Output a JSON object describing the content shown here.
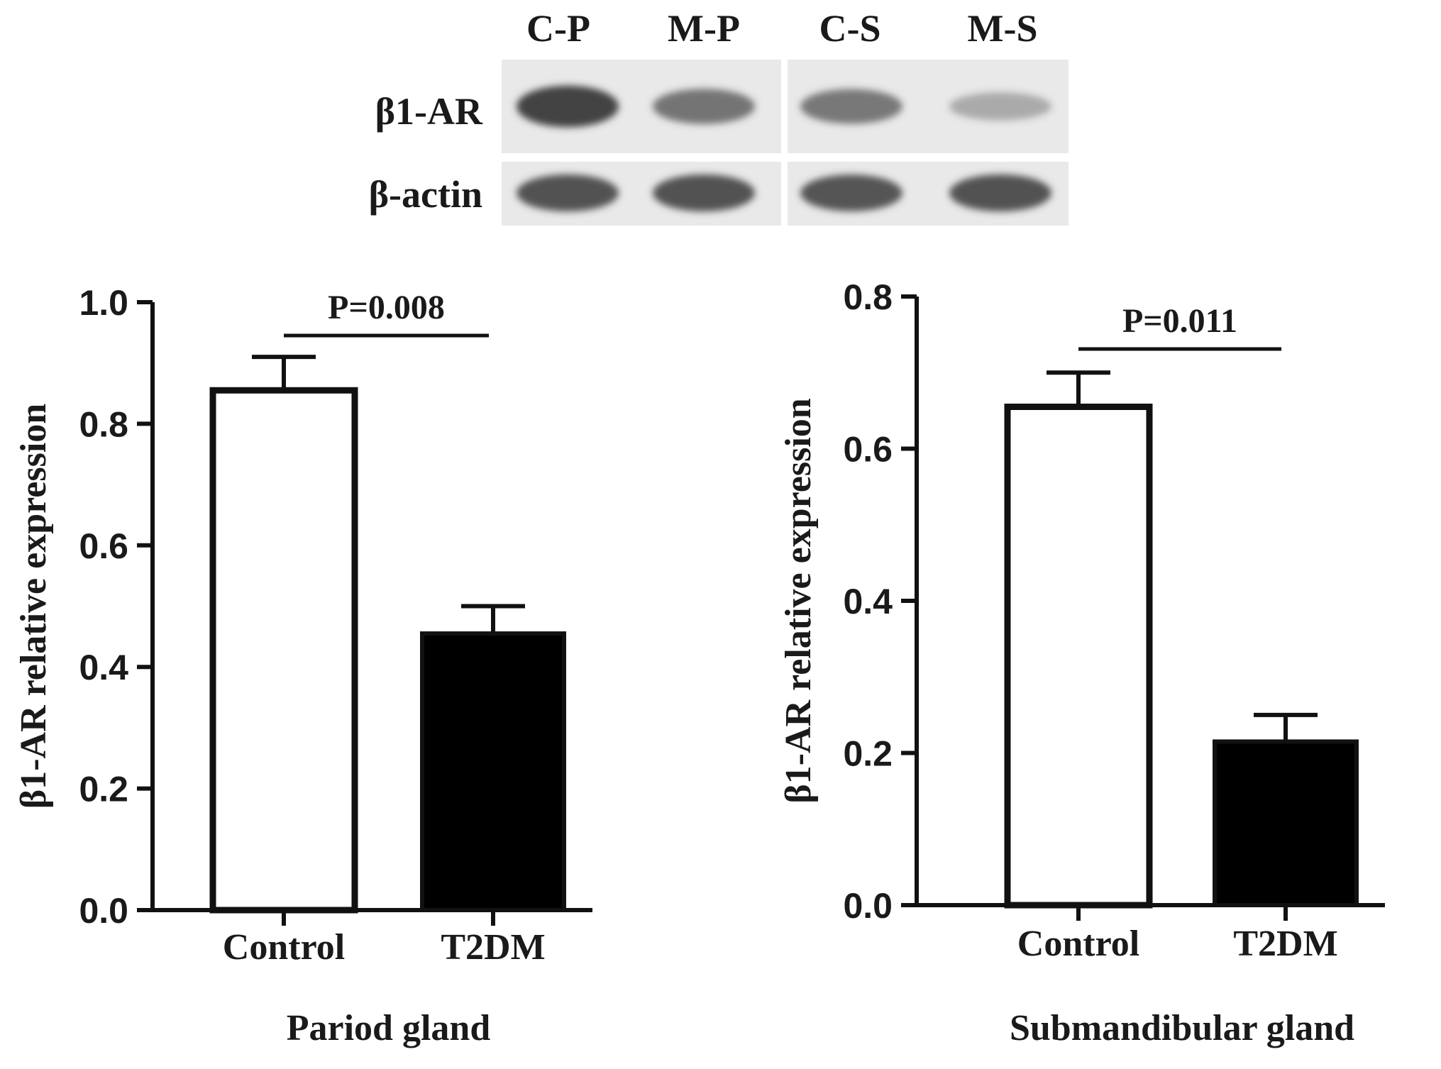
{
  "blot": {
    "lanes": [
      "C-P",
      "M-P",
      "C-S",
      "M-S"
    ],
    "rows": [
      {
        "label": "β1-AR",
        "intensities": [
          0.95,
          0.62,
          0.6,
          0.25
        ]
      },
      {
        "label": "β-actin",
        "intensities": [
          0.85,
          0.85,
          0.83,
          0.85
        ]
      }
    ],
    "colors": {
      "membrane": "#e9e9e9",
      "band": "#3c3c3c"
    }
  },
  "chart_data": [
    {
      "type": "bar",
      "categories": [
        "Control",
        "T2DM"
      ],
      "series": [
        {
          "values": [
            0.855,
            0.455
          ],
          "errors": [
            0.055,
            0.045
          ]
        }
      ],
      "title": "",
      "xlabel": "Pariod gland",
      "ylabel": "β1-AR relative expression",
      "ylim": [
        0,
        1.0
      ],
      "yticks": [
        0.0,
        0.2,
        0.4,
        0.6,
        0.8,
        1.0
      ],
      "tick_labels": [
        "0.0",
        "0.2",
        "0.4",
        "0.6",
        "0.8",
        "1.0"
      ],
      "bar_fills": [
        "#ffffff",
        "#000000"
      ],
      "annotation": {
        "text": "P=0.008",
        "between": [
          0,
          1
        ]
      }
    },
    {
      "type": "bar",
      "categories": [
        "Control",
        "T2DM"
      ],
      "series": [
        {
          "values": [
            0.655,
            0.215
          ],
          "errors": [
            0.045,
            0.035
          ]
        }
      ],
      "title": "",
      "xlabel": "Submandibular gland",
      "ylabel": "β1-AR relative expression",
      "ylim": [
        0,
        0.8
      ],
      "yticks": [
        0.0,
        0.2,
        0.4,
        0.6,
        0.8
      ],
      "tick_labels": [
        "0.0",
        "0.2",
        "0.4",
        "0.6",
        "0.8"
      ],
      "bar_fills": [
        "#ffffff",
        "#000000"
      ],
      "annotation": {
        "text": "P=0.011",
        "between": [
          0,
          1
        ]
      }
    }
  ]
}
